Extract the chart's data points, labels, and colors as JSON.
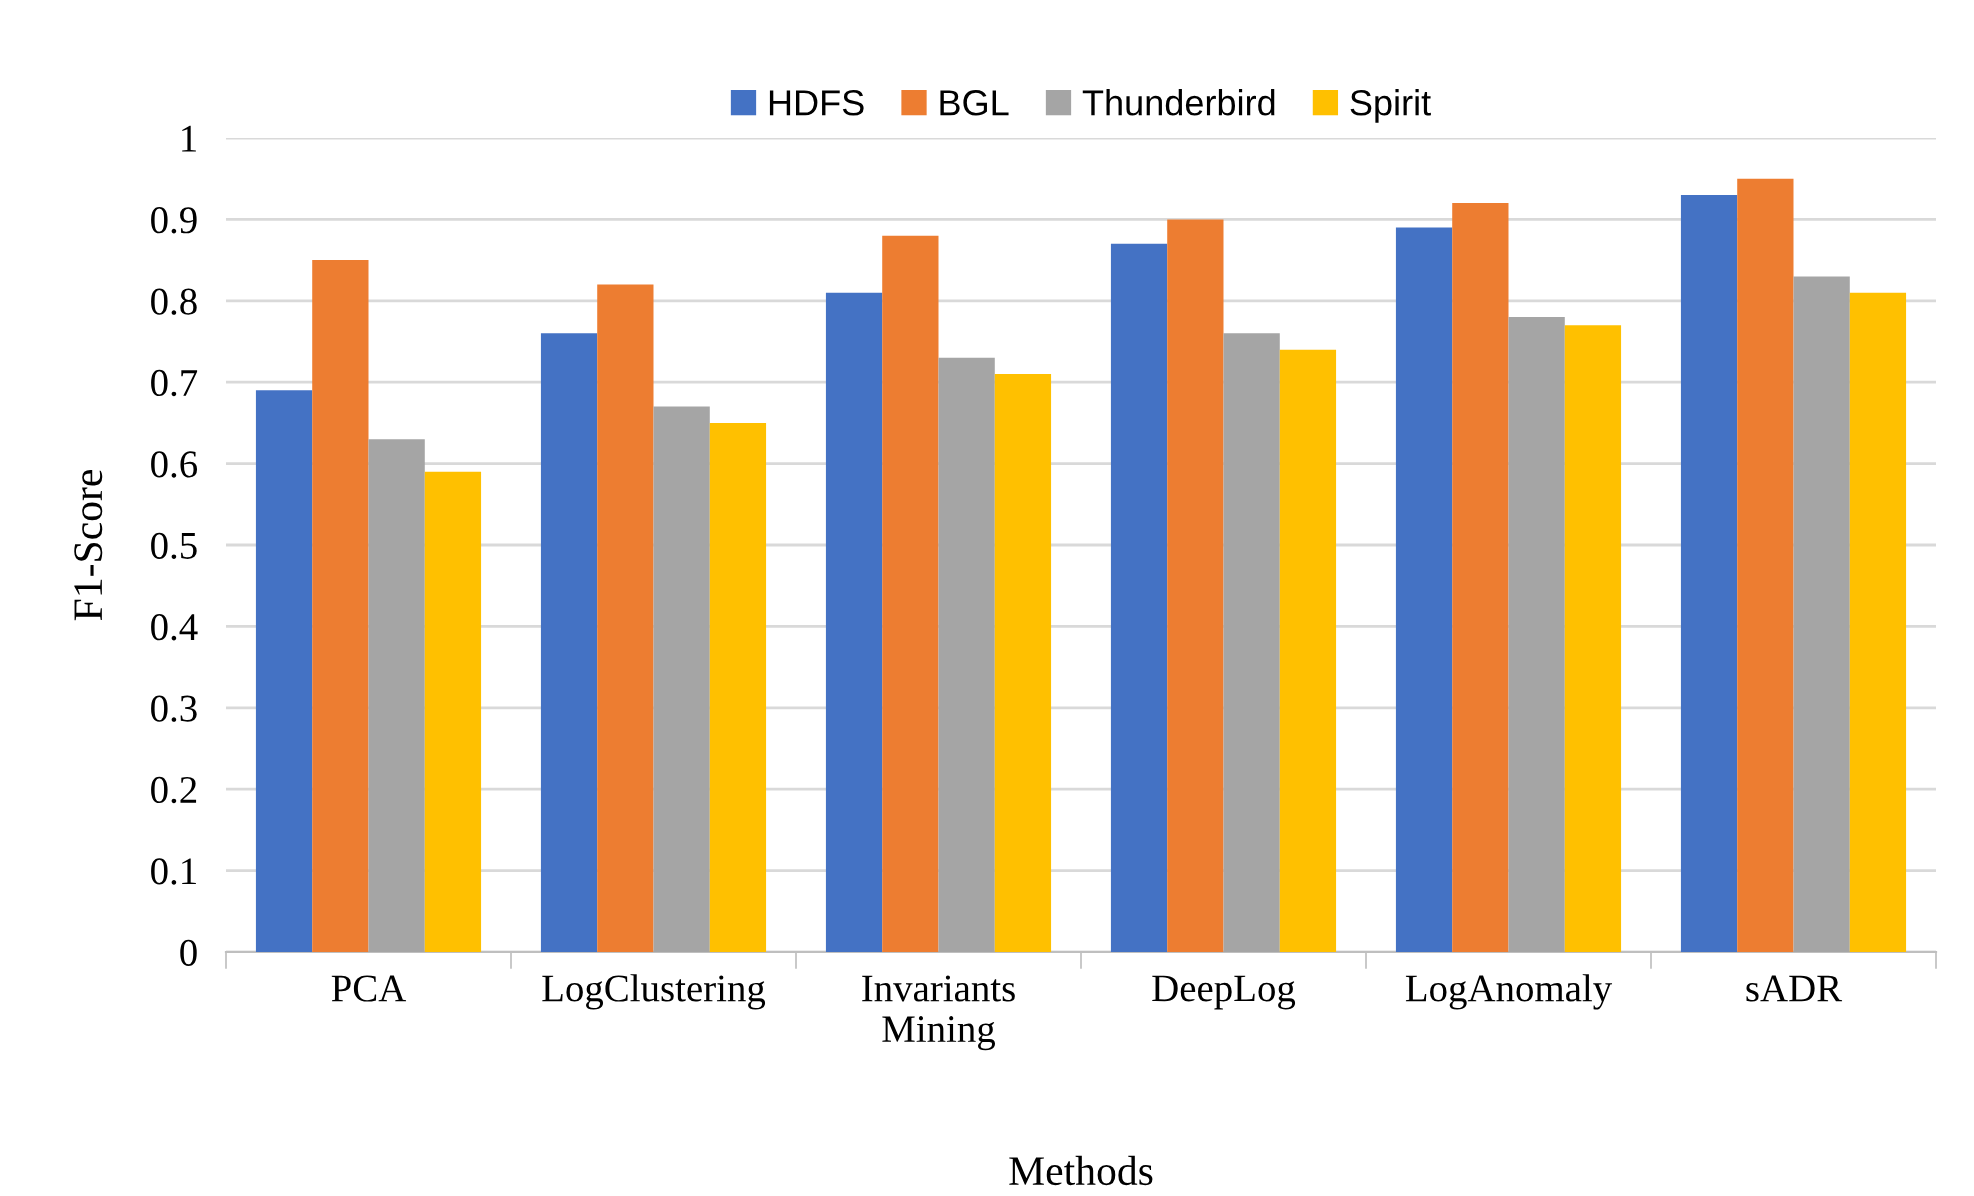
{
  "chart_data": {
    "type": "bar",
    "xlabel": "Methods",
    "ylabel": "F1-Score",
    "categories": [
      "PCA",
      "LogClustering",
      "Invariants Mining",
      "DeepLog",
      "LogAnomaly",
      "sADR"
    ],
    "series": [
      {
        "name": "HDFS",
        "color": "#4472c4",
        "values": [
          0.69,
          0.76,
          0.81,
          0.87,
          0.89,
          0.93
        ]
      },
      {
        "name": "BGL",
        "color": "#ed7d31",
        "values": [
          0.85,
          0.82,
          0.88,
          0.9,
          0.92,
          0.95
        ]
      },
      {
        "name": "Thunderbird",
        "color": "#a5a5a5",
        "values": [
          0.63,
          0.67,
          0.73,
          0.76,
          0.78,
          0.83
        ]
      },
      {
        "name": "Spirit",
        "color": "#ffc000",
        "values": [
          0.59,
          0.65,
          0.71,
          0.74,
          0.77,
          0.81
        ]
      }
    ],
    "ylim": [
      0,
      1
    ],
    "yticks": [
      0,
      0.1,
      0.2,
      0.3,
      0.4,
      0.5,
      0.6,
      0.7,
      0.8,
      0.9,
      1
    ],
    "grid": "y",
    "legend": "top"
  }
}
